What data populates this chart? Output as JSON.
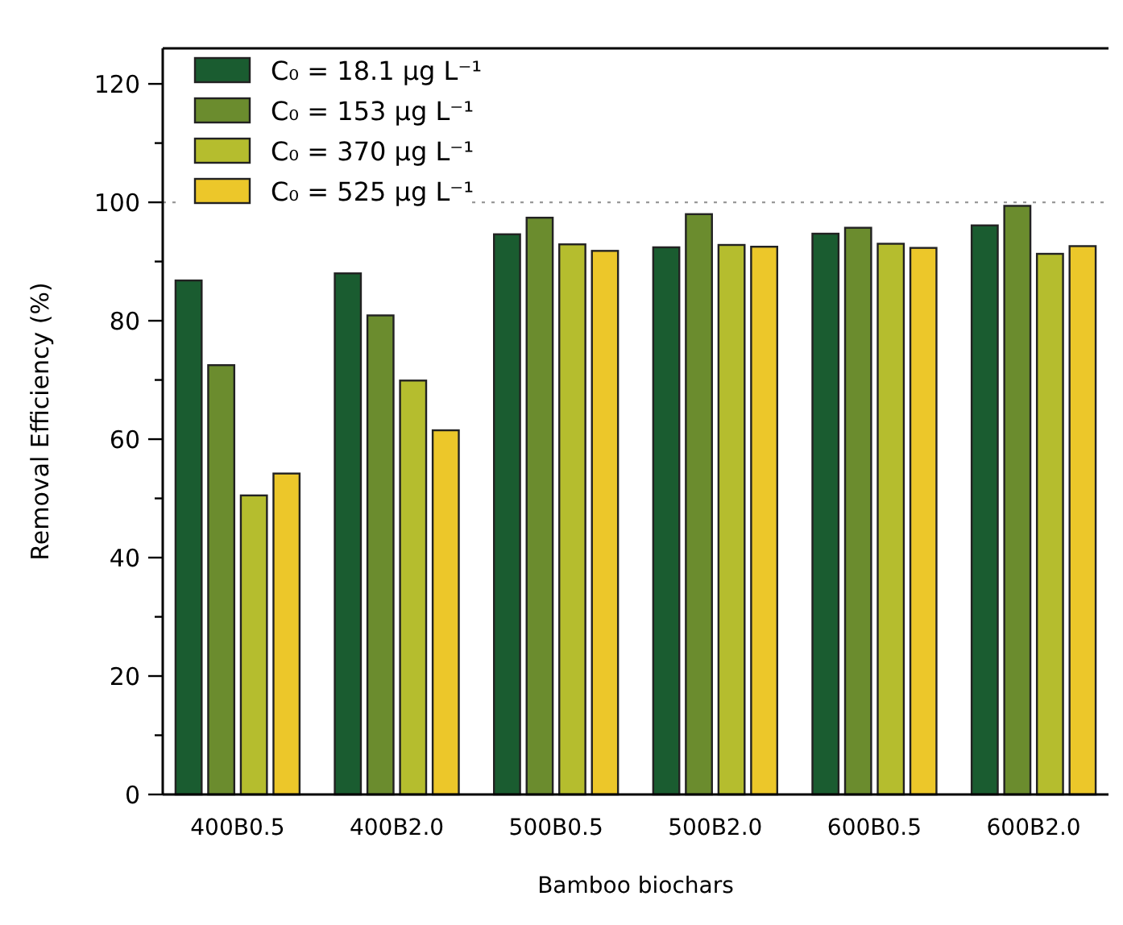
{
  "chart_data": {
    "type": "bar",
    "xlabel": "Bamboo biochars",
    "ylabel": "Removal Efficiency (%)",
    "categories": [
      "400B0.5",
      "400B2.0",
      "500B0.5",
      "500B2.0",
      "600B0.5",
      "600B2.0"
    ],
    "series": [
      {
        "name": "C₀ = 18.1 μg L⁻¹",
        "color": "#1a5c30",
        "values": [
          86.8,
          88.0,
          94.6,
          92.4,
          94.7,
          96.1
        ]
      },
      {
        "name": "C₀ = 153 μg L⁻¹",
        "color": "#6b8c2e",
        "values": [
          72.5,
          80.9,
          97.4,
          98.0,
          95.7,
          99.4
        ]
      },
      {
        "name": "C₀ = 370 μg L⁻¹",
        "color": "#b5bd2e",
        "values": [
          50.5,
          69.9,
          92.9,
          92.8,
          93.0,
          91.3
        ]
      },
      {
        "name": "C₀ = 525 μg L⁻¹",
        "color": "#ecc72a",
        "values": [
          54.2,
          61.5,
          91.8,
          92.5,
          92.3,
          92.6
        ]
      }
    ],
    "ylim": [
      0,
      126
    ],
    "yticks": [
      0,
      {
        "value": 10,
        "label": null
      },
      20,
      {
        "value": 30,
        "label": null
      },
      40,
      {
        "value": 50,
        "label": null
      },
      60,
      {
        "value": 70,
        "label": null
      },
      80,
      {
        "value": 90,
        "label": null
      },
      100,
      {
        "value": 110,
        "label": null
      },
      120
    ],
    "ref_lines": [
      {
        "axis": "y",
        "value": 100,
        "color": "#999999",
        "line_style": "dotted"
      }
    ],
    "grid": false,
    "legend": "top left"
  }
}
